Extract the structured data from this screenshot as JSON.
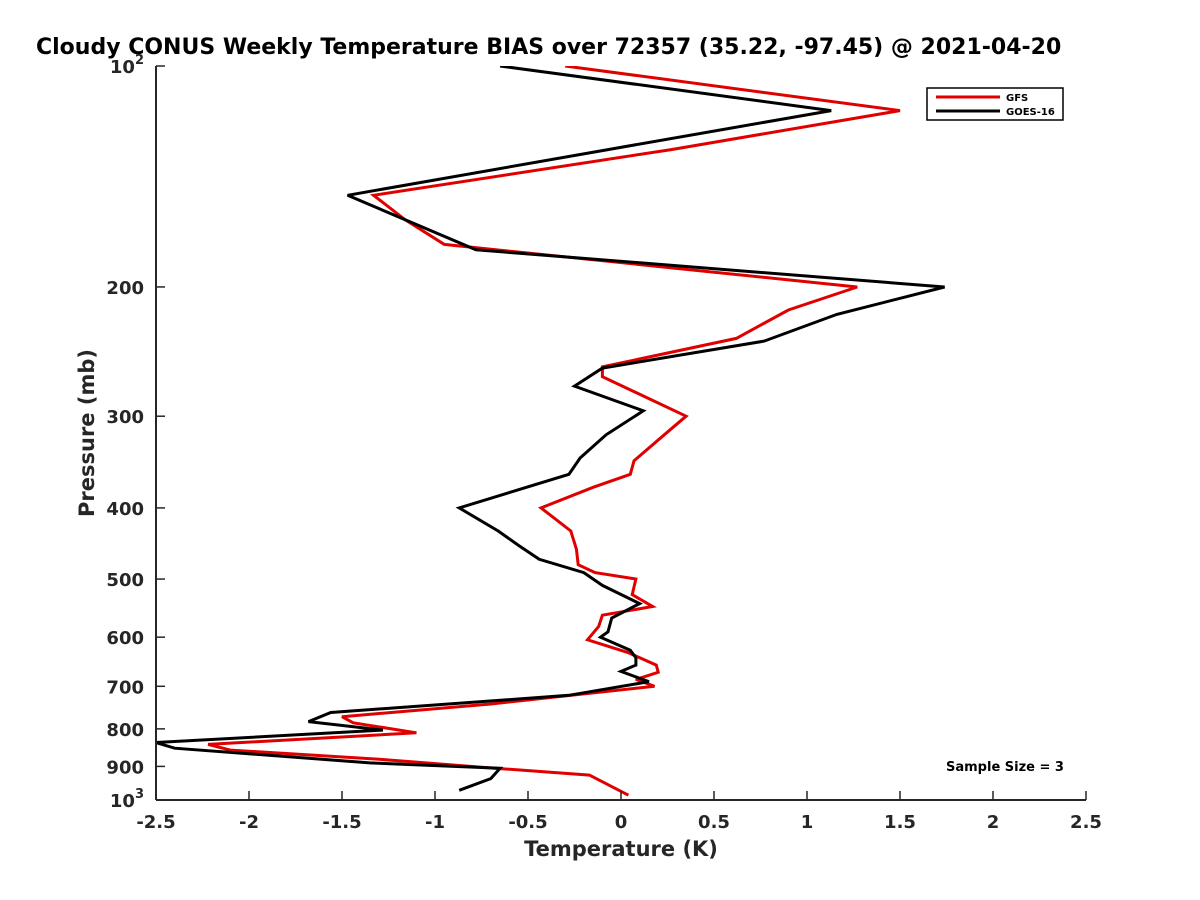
{
  "chart_data": {
    "type": "line",
    "title": "Cloudy CONUS Weekly Temperature BIAS over 72357 (35.22, -97.45) @ 2021-04-20",
    "xlabel": "Temperature (K)",
    "ylabel": "Pressure (mb)",
    "xlim": [
      -2.5,
      2.5
    ],
    "ylim": [
      100,
      1000
    ],
    "y_scale": "log",
    "y_reversed": true,
    "x_ticks": [
      "-2.5",
      "-2",
      "-1.5",
      "-1",
      "-0.5",
      "0",
      "0.5",
      "1",
      "1.5",
      "2",
      "2.5"
    ],
    "y_ticks": [
      {
        "value": 100,
        "base": "10",
        "exp": "2"
      },
      {
        "value": 200,
        "label": "200"
      },
      {
        "value": 300,
        "label": "300"
      },
      {
        "value": 400,
        "label": "400"
      },
      {
        "value": 500,
        "label": "500"
      },
      {
        "value": 600,
        "label": "600"
      },
      {
        "value": 700,
        "label": "700"
      },
      {
        "value": 800,
        "label": "800"
      },
      {
        "value": 900,
        "label": "900"
      },
      {
        "value": 1000,
        "base": "10",
        "exp": "3"
      }
    ],
    "legend_position": "top-right",
    "annotation": "Sample Size = 3",
    "series": [
      {
        "name": "GFS",
        "color": "#e00000",
        "points": [
          [
            -0.3,
            100
          ],
          [
            1.5,
            115
          ],
          [
            0.27,
            130
          ],
          [
            -1.33,
            150
          ],
          [
            -1.16,
            162
          ],
          [
            -0.95,
            175
          ],
          [
            1.27,
            200
          ],
          [
            0.9,
            215
          ],
          [
            0.62,
            235
          ],
          [
            -0.1,
            257
          ],
          [
            -0.1,
            265
          ],
          [
            0.35,
            300
          ],
          [
            0.22,
            320
          ],
          [
            0.07,
            345
          ],
          [
            0.05,
            360
          ],
          [
            -0.15,
            375
          ],
          [
            -0.43,
            400
          ],
          [
            -0.27,
            430
          ],
          [
            -0.24,
            455
          ],
          [
            -0.23,
            478
          ],
          [
            -0.14,
            490
          ],
          [
            0.08,
            500
          ],
          [
            0.06,
            525
          ],
          [
            0.17,
            545
          ],
          [
            -0.1,
            560
          ],
          [
            -0.12,
            580
          ],
          [
            -0.18,
            605
          ],
          [
            0.04,
            630
          ],
          [
            0.19,
            655
          ],
          [
            0.2,
            670
          ],
          [
            0.08,
            685
          ],
          [
            0.18,
            700
          ],
          [
            -0.7,
            740
          ],
          [
            -1.5,
            770
          ],
          [
            -1.44,
            785
          ],
          [
            -1.1,
            810
          ],
          [
            -2.22,
            840
          ],
          [
            -2.1,
            855
          ],
          [
            -1.3,
            880
          ],
          [
            -0.68,
            905
          ],
          [
            -0.17,
            925
          ],
          [
            0.04,
            985
          ]
        ]
      },
      {
        "name": "GOES-16",
        "color": "#000000",
        "points": [
          [
            -0.65,
            100
          ],
          [
            1.13,
            115
          ],
          [
            -0.07,
            130
          ],
          [
            -1.47,
            150
          ],
          [
            -0.78,
            178
          ],
          [
            1.74,
            200
          ],
          [
            1.16,
            218
          ],
          [
            0.77,
            237
          ],
          [
            -0.1,
            258
          ],
          [
            -0.25,
            273
          ],
          [
            0.12,
            295
          ],
          [
            -0.08,
            318
          ],
          [
            -0.22,
            342
          ],
          [
            -0.28,
            360
          ],
          [
            -0.87,
            400
          ],
          [
            -0.66,
            430
          ],
          [
            -0.55,
            450
          ],
          [
            -0.44,
            470
          ],
          [
            -0.2,
            490
          ],
          [
            -0.1,
            510
          ],
          [
            0.1,
            540
          ],
          [
            -0.05,
            565
          ],
          [
            -0.07,
            590
          ],
          [
            -0.11,
            600
          ],
          [
            0.05,
            625
          ],
          [
            0.08,
            640
          ],
          [
            0.08,
            655
          ],
          [
            0.0,
            668
          ],
          [
            0.15,
            690
          ],
          [
            -0.28,
            720
          ],
          [
            -1.56,
            760
          ],
          [
            -1.68,
            782
          ],
          [
            -1.28,
            803
          ],
          [
            -2.5,
            835
          ],
          [
            -2.4,
            850
          ],
          [
            -1.35,
            890
          ],
          [
            -0.65,
            905
          ],
          [
            -0.7,
            935
          ],
          [
            -0.87,
            970
          ]
        ]
      }
    ]
  }
}
